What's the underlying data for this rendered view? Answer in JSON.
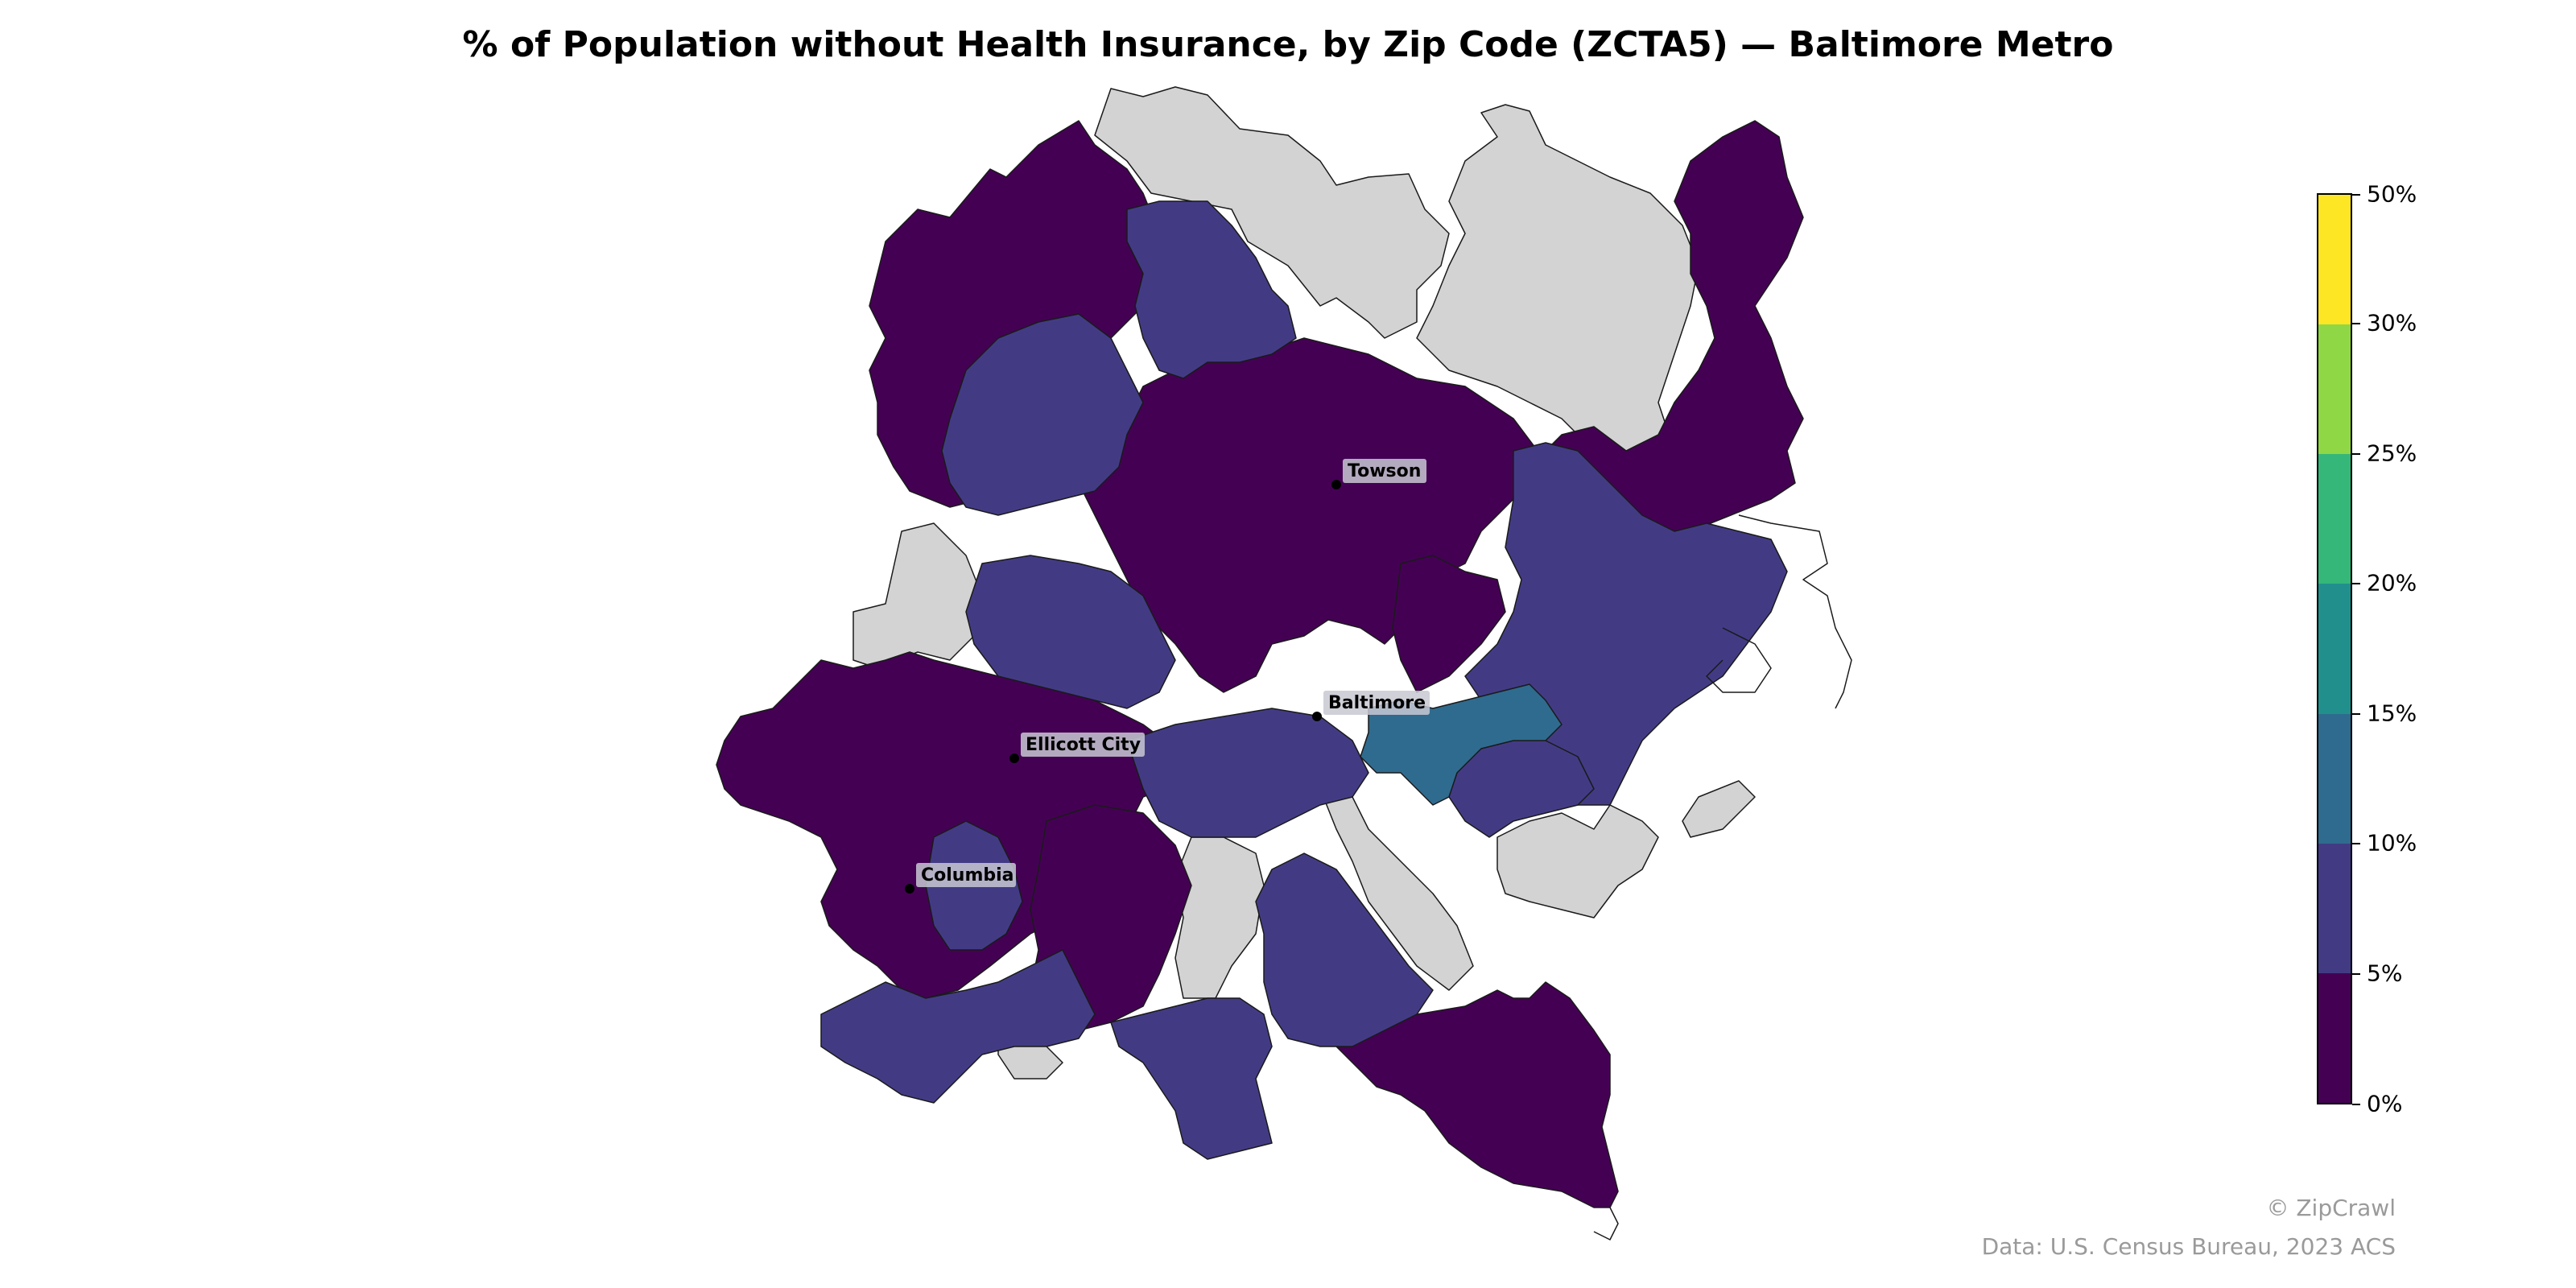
{
  "title": "% of Population without Health Insurance, by Zip Code (ZCTA5) — Baltimore Metro",
  "cities": [
    {
      "name": "Towson"
    },
    {
      "name": "Baltimore"
    },
    {
      "name": "Ellicott City"
    },
    {
      "name": "Columbia"
    }
  ],
  "legend": {
    "bins": [
      {
        "label": "0%",
        "color": "#440154"
      },
      {
        "label": "5%",
        "color": "#423b84"
      },
      {
        "label": "10%",
        "color": "#2f6b8e"
      },
      {
        "label": "15%",
        "color": "#21908d"
      },
      {
        "label": "20%",
        "color": "#35b779"
      },
      {
        "label": "25%",
        "color": "#8fd744"
      },
      {
        "label": "30%",
        "color": "#fde725"
      }
    ],
    "top_label": "50%"
  },
  "no_data_color": "#d3d3d3",
  "credit": "© ZipCrawl",
  "source": "Data: U.S. Census Bureau, 2023 ACS"
}
